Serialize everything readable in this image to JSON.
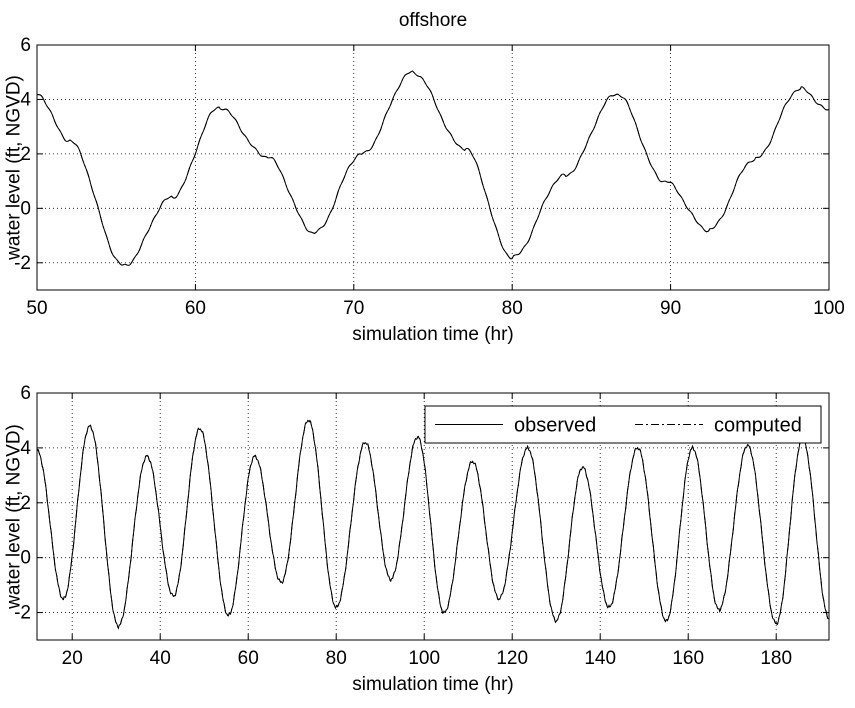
{
  "chart_data": [
    {
      "type": "line",
      "title": "offshore",
      "xlabel": "simulation time (hr)",
      "ylabel": "water level (ft, NGVD)",
      "xlim": [
        50,
        100
      ],
      "ylim": [
        -3,
        6
      ],
      "xticks": [
        50,
        60,
        70,
        80,
        90,
        100
      ],
      "yticks": [
        -2,
        0,
        2,
        4,
        6
      ],
      "grid": true,
      "legend": null,
      "series": [
        {
          "style": "solid",
          "color": "#000000",
          "x": [
            50,
            52,
            55.5,
            58.5,
            61.5,
            64.5,
            67.5,
            70.5,
            73.7,
            77,
            80,
            83.3,
            86.6,
            89.6,
            92.4,
            95.3,
            98.2,
            100
          ],
          "y": [
            4.2,
            2.5,
            -2.1,
            0.4,
            3.7,
            1.9,
            -0.9,
            2.0,
            5.0,
            2.2,
            -1.8,
            1.2,
            4.2,
            1.0,
            -0.8,
            1.8,
            4.4,
            3.6
          ]
        },
        {
          "style": "dashdot",
          "color": "#000000",
          "x": [
            50,
            52,
            55.5,
            58.5,
            61.5,
            64.5,
            67.5,
            70.5,
            73.7,
            77,
            80,
            83.3,
            86.6,
            89.6,
            92.4,
            95.3,
            98.2,
            100
          ],
          "y": [
            4.2,
            2.5,
            -2.1,
            0.4,
            3.7,
            1.9,
            -0.9,
            2.0,
            5.0,
            2.2,
            -1.8,
            1.2,
            4.2,
            1.0,
            -0.8,
            1.8,
            4.4,
            3.6
          ]
        }
      ]
    },
    {
      "type": "line",
      "title": "",
      "xlabel": "simulation time (hr)",
      "ylabel": "water level (ft, NGVD)",
      "xlim": [
        12,
        192
      ],
      "ylim": [
        -3,
        6
      ],
      "xticks": [
        20,
        40,
        60,
        80,
        100,
        120,
        140,
        160,
        180
      ],
      "yticks": [
        -2,
        0,
        2,
        4,
        6
      ],
      "grid": true,
      "legend": {
        "placement": "top-right",
        "entries": [
          "observed",
          "computed"
        ]
      },
      "series": [
        {
          "name": "observed",
          "style": "solid",
          "color": "#000000",
          "x": [
            12,
            18,
            24,
            30.5,
            37,
            43,
            49,
            55.5,
            61.5,
            67.5,
            73.7,
            80,
            86.6,
            92.4,
            98.5,
            104.5,
            111,
            117,
            123.5,
            130,
            136,
            142,
            148.5,
            155,
            161,
            167,
            173.5,
            180,
            186,
            192
          ],
          "y": [
            3.9,
            -1.5,
            4.8,
            -2.5,
            3.7,
            -1.4,
            4.7,
            -2.1,
            3.7,
            -0.9,
            5.0,
            -1.8,
            4.2,
            -0.8,
            4.4,
            -2.0,
            3.5,
            -1.5,
            4.0,
            -2.3,
            3.3,
            -1.8,
            4.0,
            -2.3,
            4.0,
            -1.9,
            4.1,
            -2.4,
            4.3,
            -2.2
          ]
        },
        {
          "name": "computed",
          "style": "dashdot",
          "color": "#000000",
          "x": [
            12,
            18,
            24,
            30.5,
            37,
            43,
            49,
            55.5,
            61.5,
            67.5,
            73.7,
            80,
            86.6,
            92.4,
            98.5,
            104.5,
            111,
            117,
            123.5,
            130,
            136,
            142,
            148.5,
            155,
            161,
            167,
            173.5,
            180,
            186,
            192
          ],
          "y": [
            3.9,
            -1.5,
            4.8,
            -2.5,
            3.7,
            -1.4,
            4.7,
            -2.1,
            3.7,
            -0.9,
            5.0,
            -1.8,
            4.2,
            -0.8,
            4.4,
            -2.0,
            3.5,
            -1.5,
            4.0,
            -2.3,
            3.3,
            -1.8,
            4.0,
            -2.3,
            4.0,
            -1.9,
            4.1,
            -2.4,
            4.3,
            -2.2
          ]
        }
      ]
    }
  ]
}
